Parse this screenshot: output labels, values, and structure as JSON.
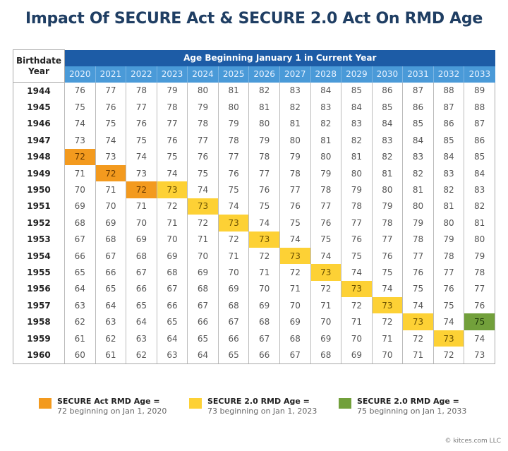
{
  "title": "Impact Of SECURE Act & SECURE 2.0 Act On RMD Age",
  "table": {
    "row_header": "Birthdate Year",
    "column_group_header": "Age Beginning January 1 in Current Year",
    "years": [
      "2020",
      "2021",
      "2022",
      "2023",
      "2024",
      "2025",
      "2026",
      "2027",
      "2028",
      "2029",
      "2030",
      "2031",
      "2032",
      "2033"
    ],
    "rows": [
      {
        "birth": "1944",
        "ages": [
          76,
          77,
          78,
          79,
          80,
          81,
          82,
          83,
          84,
          85,
          86,
          87,
          88,
          89
        ],
        "highlights": {}
      },
      {
        "birth": "1945",
        "ages": [
          75,
          76,
          77,
          78,
          79,
          80,
          81,
          82,
          83,
          84,
          85,
          86,
          87,
          88
        ],
        "highlights": {}
      },
      {
        "birth": "1946",
        "ages": [
          74,
          75,
          76,
          77,
          78,
          79,
          80,
          81,
          82,
          83,
          84,
          85,
          86,
          87
        ],
        "highlights": {}
      },
      {
        "birth": "1947",
        "ages": [
          73,
          74,
          75,
          76,
          77,
          78,
          79,
          80,
          81,
          82,
          83,
          84,
          85,
          86
        ],
        "highlights": {}
      },
      {
        "birth": "1948",
        "ages": [
          72,
          73,
          74,
          75,
          76,
          77,
          78,
          79,
          80,
          81,
          82,
          83,
          84,
          85
        ],
        "highlights": {
          "2020": "orange"
        }
      },
      {
        "birth": "1949",
        "ages": [
          71,
          72,
          73,
          74,
          75,
          76,
          77,
          78,
          79,
          80,
          81,
          82,
          83,
          84
        ],
        "highlights": {
          "2021": "orange"
        }
      },
      {
        "birth": "1950",
        "ages": [
          70,
          71,
          72,
          73,
          74,
          75,
          76,
          77,
          78,
          79,
          80,
          81,
          82,
          83
        ],
        "highlights": {
          "2022": "orange",
          "2023": "yellow"
        }
      },
      {
        "birth": "1951",
        "ages": [
          69,
          70,
          71,
          72,
          73,
          74,
          75,
          76,
          77,
          78,
          79,
          80,
          81,
          82
        ],
        "highlights": {
          "2024": "yellow"
        }
      },
      {
        "birth": "1952",
        "ages": [
          68,
          69,
          70,
          71,
          72,
          73,
          74,
          75,
          76,
          77,
          78,
          79,
          80,
          81
        ],
        "highlights": {
          "2025": "yellow"
        }
      },
      {
        "birth": "1953",
        "ages": [
          67,
          68,
          69,
          70,
          71,
          72,
          73,
          74,
          75,
          76,
          77,
          78,
          79,
          80
        ],
        "highlights": {
          "2026": "yellow"
        }
      },
      {
        "birth": "1954",
        "ages": [
          66,
          67,
          68,
          69,
          70,
          71,
          72,
          73,
          74,
          75,
          76,
          77,
          78,
          79
        ],
        "highlights": {
          "2027": "yellow"
        }
      },
      {
        "birth": "1955",
        "ages": [
          65,
          66,
          67,
          68,
          69,
          70,
          71,
          72,
          73,
          74,
          75,
          76,
          77,
          78
        ],
        "highlights": {
          "2028": "yellow"
        }
      },
      {
        "birth": "1956",
        "ages": [
          64,
          65,
          66,
          67,
          68,
          69,
          70,
          71,
          72,
          73,
          74,
          75,
          76,
          77
        ],
        "highlights": {
          "2029": "yellow"
        }
      },
      {
        "birth": "1957",
        "ages": [
          63,
          64,
          65,
          66,
          67,
          68,
          69,
          70,
          71,
          72,
          73,
          74,
          75,
          76
        ],
        "highlights": {
          "2030": "yellow"
        }
      },
      {
        "birth": "1958",
        "ages": [
          62,
          63,
          64,
          65,
          66,
          67,
          68,
          69,
          70,
          71,
          72,
          73,
          74,
          75
        ],
        "highlights": {
          "2031": "yellow",
          "2033": "green"
        }
      },
      {
        "birth": "1959",
        "ages": [
          61,
          62,
          63,
          64,
          65,
          66,
          67,
          68,
          69,
          70,
          71,
          72,
          73,
          74
        ],
        "highlights": {
          "2032": "yellow"
        }
      },
      {
        "birth": "1960",
        "ages": [
          60,
          61,
          62,
          63,
          64,
          65,
          66,
          67,
          68,
          69,
          70,
          71,
          72,
          73
        ],
        "highlights": {}
      }
    ]
  },
  "colors": {
    "orange": "#f39a1e",
    "yellow": "#fdd135",
    "green": "#72a03b",
    "header_dark": "#1d5ca6",
    "header_light": "#4a9ad8",
    "title": "#1f3e63"
  },
  "legend": [
    {
      "color": "orange",
      "title": "SECURE Act RMD Age =",
      "text": "72 beginning on Jan 1, 2020"
    },
    {
      "color": "yellow",
      "title": "SECURE 2.0 RMD Age =",
      "text": "73 beginning on Jan 1, 2023"
    },
    {
      "color": "green",
      "title": "SECURE 2.0 RMD Age =",
      "text": "75 beginning on Jan 1, 2033"
    }
  ],
  "credit": "© kitces.com LLC"
}
